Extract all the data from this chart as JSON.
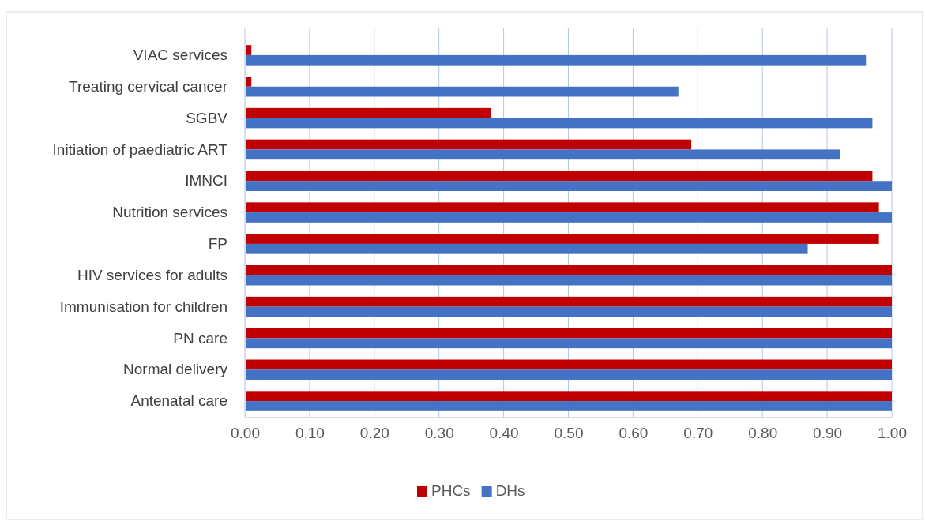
{
  "chart_data": {
    "type": "bar",
    "orientation": "horizontal",
    "categories": [
      "VIAC services",
      "Treating cervical cancer",
      "SGBV",
      "Initiation of paediatric ART",
      "IMNCI",
      "Nutrition services",
      "FP",
      "HIV services for adults",
      "Immunisation for children",
      "PN care",
      "Normal delivery",
      "Antenatal care"
    ],
    "series": [
      {
        "name": "PHCs",
        "color": "#c00000",
        "values": [
          0.01,
          0.01,
          0.38,
          0.69,
          0.97,
          0.98,
          0.98,
          1,
          1,
          1,
          1,
          1
        ]
      },
      {
        "name": "DHs",
        "color": "#4472c4",
        "values": [
          0.96,
          0.67,
          0.97,
          0.92,
          1,
          1,
          0.87,
          1,
          1,
          1,
          1,
          1
        ]
      }
    ],
    "xlim": [
      0,
      1
    ],
    "xticks": [
      {
        "value": 0,
        "label": "0.00"
      },
      {
        "value": 0.1,
        "label": "0.10"
      },
      {
        "value": 0.2,
        "label": "0.20"
      },
      {
        "value": 0.3,
        "label": "0.30"
      },
      {
        "value": 0.4,
        "label": "0.40"
      },
      {
        "value": 0.5,
        "label": "0.50"
      },
      {
        "value": 0.6,
        "label": "0.60"
      },
      {
        "value": 0.7,
        "label": "0.70"
      },
      {
        "value": 0.8,
        "label": "0.80"
      },
      {
        "value": 0.9,
        "label": "0.90"
      },
      {
        "value": 1,
        "label": "1.00"
      }
    ],
    "grid": "x",
    "legend": "bottom"
  }
}
